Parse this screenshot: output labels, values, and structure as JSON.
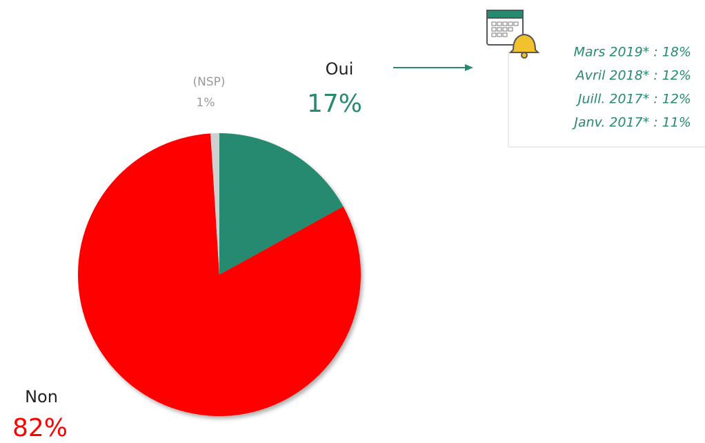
{
  "chart_data": {
    "type": "pie",
    "categories": [
      "Oui",
      "Non",
      "(NSP)"
    ],
    "values": [
      17,
      82,
      1
    ],
    "value_labels": [
      "17%",
      "82%",
      "1%"
    ],
    "colors": [
      "#268a70",
      "#ff0000",
      "#d0d0d0"
    ],
    "annotations": [
      "Mars 2019* : 18%",
      "Avril 2018* : 12%",
      "Juill. 2017* : 12%",
      "Janv. 2017* : 11%"
    ]
  }
}
